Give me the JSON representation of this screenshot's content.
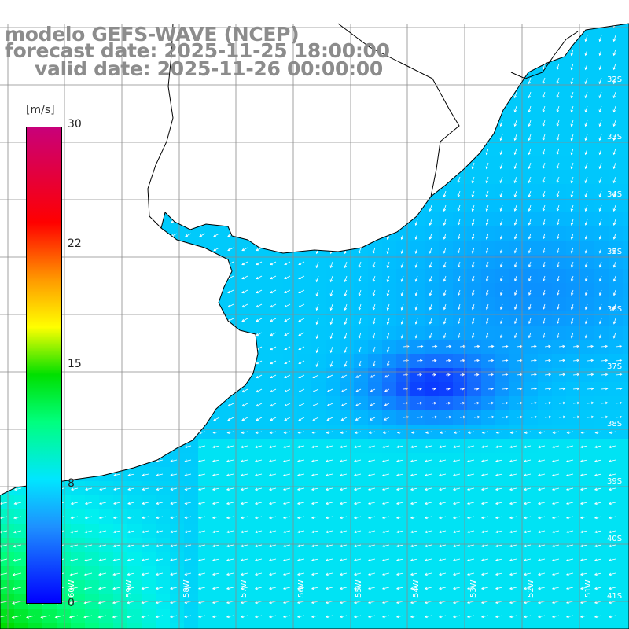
{
  "header": {
    "line1": "modelo GEFS-WAVE (NCEP)",
    "line2": "forecast date: 2025-11-25 18:00:00",
    "line3": "valid date: 2025-11-26 00:00:00"
  },
  "colorbar": {
    "units": "[m/s]",
    "ticks": [
      "30",
      "22",
      "15",
      "8",
      "0"
    ],
    "colors": [
      "#0000ff",
      "#1e90ff",
      "#00e6ff",
      "#00ff7f",
      "#00e000",
      "#ffff00",
      "#ff9900",
      "#ff0000",
      "#c8007a"
    ]
  },
  "map": {
    "lat_labels": [
      "32S",
      "33S",
      "34S",
      "35S",
      "36S",
      "37S",
      "38S",
      "39S",
      "40S",
      "41S"
    ],
    "lon_labels": [
      "60W",
      "59W",
      "58W",
      "57W",
      "56W",
      "55W",
      "54W",
      "53W",
      "52W",
      "51W"
    ],
    "land_color": "#ffffff",
    "grid_color": "#8a8a8a",
    "arrow_color": "#ffffff"
  }
}
